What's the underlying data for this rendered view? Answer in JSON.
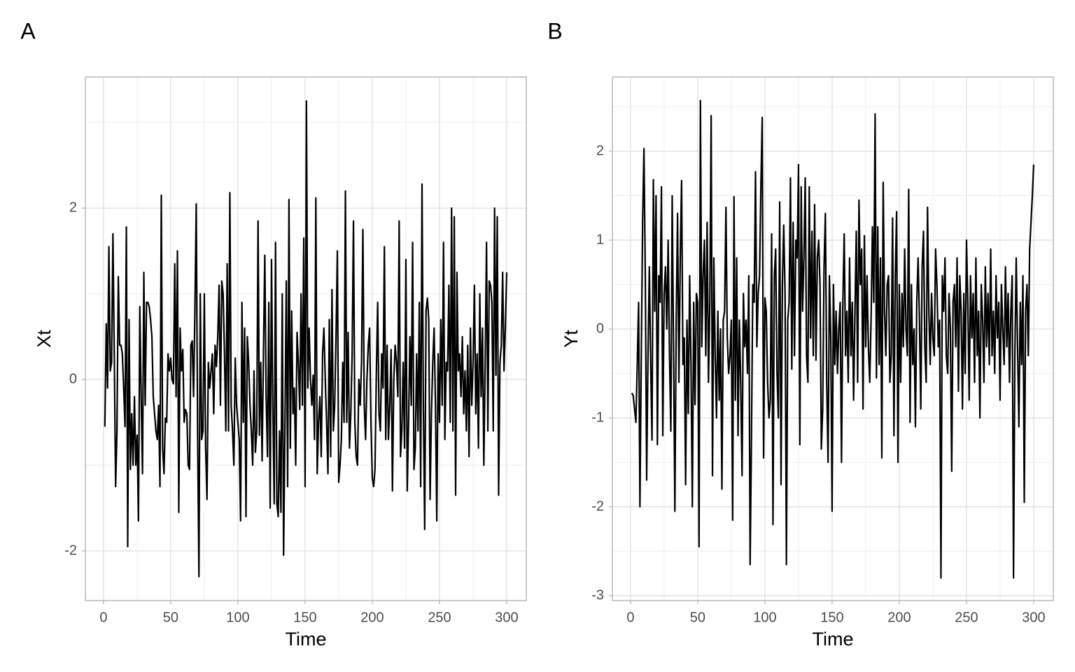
{
  "chart_data": [
    {
      "type": "line",
      "title": "A",
      "xlabel": "Time",
      "ylabel": "Xt",
      "color": "#000000",
      "xlim": [
        -13.5,
        314.6
      ],
      "ylim": [
        -2.58,
        3.53
      ],
      "xticks": [
        0,
        50,
        100,
        150,
        200,
        250,
        300
      ],
      "yticks": [
        -2,
        0,
        2
      ],
      "xminor": [
        25,
        75,
        125,
        175,
        225,
        275
      ],
      "yminor": [
        -1,
        1,
        3
      ],
      "grid": true,
      "x": [
        1,
        2,
        3,
        4,
        5,
        6,
        7,
        8,
        9,
        10,
        11,
        12,
        13,
        14,
        15,
        16,
        17,
        18,
        19,
        20,
        21,
        22,
        23,
        24,
        25,
        26,
        27,
        28,
        29,
        30,
        31,
        32,
        33,
        34,
        35,
        36,
        37,
        38,
        39,
        40,
        41,
        42,
        43,
        44,
        45,
        46,
        47,
        48,
        49,
        50,
        51,
        52,
        53,
        54,
        55,
        56,
        57,
        58,
        59,
        60,
        61,
        62,
        63,
        64,
        65,
        66,
        67,
        68,
        69,
        70,
        71,
        72,
        73,
        74,
        75,
        76,
        77,
        78,
        79,
        80,
        81,
        82,
        83,
        84,
        85,
        86,
        87,
        88,
        89,
        90,
        91,
        92,
        93,
        94,
        95,
        96,
        97,
        98,
        99,
        100,
        101,
        102,
        103,
        104,
        105,
        106,
        107,
        108,
        109,
        110,
        111,
        112,
        113,
        114,
        115,
        116,
        117,
        118,
        119,
        120,
        121,
        122,
        123,
        124,
        125,
        126,
        127,
        128,
        129,
        130,
        131,
        132,
        133,
        134,
        135,
        136,
        137,
        138,
        139,
        140,
        141,
        142,
        143,
        144,
        145,
        146,
        147,
        148,
        149,
        150,
        151,
        152,
        153,
        154,
        155,
        156,
        157,
        158,
        159,
        160,
        161,
        162,
        163,
        164,
        165,
        166,
        167,
        168,
        169,
        170,
        171,
        172,
        173,
        174,
        175,
        176,
        177,
        178,
        179,
        180,
        181,
        182,
        183,
        184,
        185,
        186,
        187,
        188,
        189,
        190,
        191,
        192,
        193,
        194,
        195,
        196,
        197,
        198,
        199,
        200,
        201,
        202,
        203,
        204,
        205,
        206,
        207,
        208,
        209,
        210,
        211,
        212,
        213,
        214,
        215,
        216,
        217,
        218,
        219,
        220,
        221,
        222,
        223,
        224,
        225,
        226,
        227,
        228,
        229,
        230,
        231,
        232,
        233,
        234,
        235,
        236,
        237,
        238,
        239,
        240,
        241,
        242,
        243,
        244,
        245,
        246,
        247,
        248,
        249,
        250,
        251,
        252,
        253,
        254,
        255,
        256,
        257,
        258,
        259,
        260,
        261,
        262,
        263,
        264,
        265,
        266,
        267,
        268,
        269,
        270,
        271,
        272,
        273,
        274,
        275,
        276,
        277,
        278,
        279,
        280,
        281,
        282,
        283,
        284,
        285,
        286,
        287,
        288,
        289,
        290,
        291,
        292,
        293,
        294,
        295,
        296,
        297,
        298,
        299,
        300
      ],
      "values": [
        -0.55,
        0.65,
        -0.1,
        1.55,
        0.1,
        0.2,
        1.7,
        0.3,
        -1.25,
        -0.6,
        1.2,
        0.4,
        0.4,
        0.3,
        -0.1,
        -0.55,
        1.78,
        -1.95,
        0.7,
        -1.05,
        -0.4,
        -1.0,
        -0.2,
        -1.0,
        -0.65,
        -1.65,
        0.85,
        -0.2,
        -1.1,
        1.25,
        -0.3,
        0.9,
        0.9,
        0.85,
        0.7,
        0.5,
        -0.2,
        -0.4,
        -0.6,
        -0.7,
        -0.3,
        -1.25,
        2.15,
        -0.8,
        -1.1,
        -0.45,
        -0.5,
        0.3,
        0.1,
        0.25,
        0.0,
        -0.05,
        1.35,
        -0.2,
        1.5,
        -1.55,
        0.6,
        0.1,
        0.35,
        -0.5,
        -0.35,
        -0.4,
        -1.0,
        -1.05,
        0.4,
        0.45,
        -0.2,
        0.8,
        2.05,
        -0.6,
        -2.3,
        1.0,
        -0.7,
        -0.6,
        1.0,
        -0.8,
        -1.4,
        0.2,
        -0.1,
        0.1,
        0.3,
        -0.4,
        0.4,
        0.15,
        0.5,
        1.1,
        -0.3,
        1.15,
        1.0,
        0.3,
        -0.6,
        1.35,
        -0.6,
        2.18,
        -0.3,
        -0.6,
        -1.0,
        0.25,
        -0.3,
        -0.5,
        -0.7,
        -1.65,
        0.9,
        -0.5,
        0.6,
        -1.6,
        0.5,
        0.2,
        -0.3,
        -0.6,
        -1.0,
        0.1,
        -0.85,
        -0.6,
        1.85,
        -0.65,
        0.2,
        -0.95,
        0.3,
        1.45,
        -0.2,
        -0.9,
        0.9,
        -1.5,
        1.4,
        -0.3,
        -1.45,
        1.6,
        -1.45,
        -1.6,
        -0.6,
        -1.55,
        1.0,
        -2.05,
        -0.55,
        1.15,
        -1.25,
        2.1,
        -0.8,
        0.8,
        -0.4,
        -0.1,
        -1.0,
        0.55,
        0.2,
        -0.35,
        1.0,
        -0.3,
        1.65,
        -1.25,
        3.25,
        -0.1,
        0.6,
        0.0,
        -0.3,
        0.05,
        -0.7,
        2.12,
        -1.1,
        -0.5,
        -0.2,
        -0.9,
        0.3,
        0.6,
        0.0,
        -0.5,
        -1.1,
        0.7,
        -0.9,
        1.05,
        -0.6,
        -0.3,
        0.5,
        1.5,
        -1.2,
        -1.0,
        -0.7,
        0.2,
        -0.5,
        2.2,
        -0.5,
        0.55,
        -0.8,
        -0.4,
        0.3,
        1.85,
        -0.5,
        -0.9,
        -1.0,
        0.0,
        -0.3,
        0.2,
        1.75,
        -0.3,
        -0.7,
        0.0,
        0.4,
        0.6,
        -0.5,
        -1.15,
        -1.25,
        -1.05,
        0.05,
        0.9,
        -0.4,
        -0.6,
        0.3,
        -0.1,
        1.55,
        -0.7,
        0.4,
        -0.7,
        -0.3,
        0.35,
        -1.3,
        0.0,
        0.4,
        0.2,
        -0.2,
        1.85,
        -0.9,
        -0.6,
        0.2,
        -0.8,
        1.4,
        -1.3,
        -0.5,
        0.5,
        -0.3,
        1.6,
        -1.05,
        -0.8,
        0.3,
        -0.6,
        0.9,
        -1.25,
        2.28,
        -0.3,
        -1.75,
        0.8,
        0.95,
        0.7,
        -1.4,
        -0.4,
        0.2,
        0.6,
        -0.3,
        -1.65,
        0.3,
        -0.5,
        0.7,
        -0.3,
        1.6,
        -0.7,
        0.2,
        0.1,
        1.1,
        -0.5,
        2.0,
        -0.6,
        1.9,
        -1.35,
        1.25,
        0.1,
        0.3,
        -0.2,
        0.5,
        -0.4,
        0.1,
        -0.6,
        0.4,
        -0.9,
        0.6,
        -0.3,
        0.2,
        1.1,
        -0.4,
        0.3,
        -0.8,
        1.0,
        -0.2,
        0.6,
        -1.0,
        0.2,
        1.6,
        -0.6,
        1.15,
        1.1,
        0.9,
        -0.6,
        2.0,
        0.05,
        1.9,
        -1.35,
        0.2,
        0.4,
        1.25,
        0.1,
        0.6,
        1.25
      ]
    },
    {
      "type": "line",
      "title": "B",
      "xlabel": "Time",
      "ylabel": "Yt",
      "color": "#000000",
      "xlim": [
        -13.5,
        314.6
      ],
      "ylim": [
        -3.055,
        2.835
      ],
      "xticks": [
        0,
        50,
        100,
        150,
        200,
        250,
        300
      ],
      "yticks": [
        -3,
        -2,
        -1,
        0,
        1,
        2
      ],
      "xminor": [
        25,
        75,
        125,
        175,
        225,
        275
      ],
      "yminor": [
        -2.5,
        -1.5,
        -0.5,
        0.5,
        1.5,
        2.5
      ],
      "grid": true,
      "x": [
        1,
        2,
        3,
        4,
        5,
        6,
        7,
        8,
        9,
        10,
        11,
        12,
        13,
        14,
        15,
        16,
        17,
        18,
        19,
        20,
        21,
        22,
        23,
        24,
        25,
        26,
        27,
        28,
        29,
        30,
        31,
        32,
        33,
        34,
        35,
        36,
        37,
        38,
        39,
        40,
        41,
        42,
        43,
        44,
        45,
        46,
        47,
        48,
        49,
        50,
        51,
        52,
        53,
        54,
        55,
        56,
        57,
        58,
        59,
        60,
        61,
        62,
        63,
        64,
        65,
        66,
        67,
        68,
        69,
        70,
        71,
        72,
        73,
        74,
        75,
        76,
        77,
        78,
        79,
        80,
        81,
        82,
        83,
        84,
        85,
        86,
        87,
        88,
        89,
        90,
        91,
        92,
        93,
        94,
        95,
        96,
        97,
        98,
        99,
        100,
        101,
        102,
        103,
        104,
        105,
        106,
        107,
        108,
        109,
        110,
        111,
        112,
        113,
        114,
        115,
        116,
        117,
        118,
        119,
        120,
        121,
        122,
        123,
        124,
        125,
        126,
        127,
        128,
        129,
        130,
        131,
        132,
        133,
        134,
        135,
        136,
        137,
        138,
        139,
        140,
        141,
        142,
        143,
        144,
        145,
        146,
        147,
        148,
        149,
        150,
        151,
        152,
        153,
        154,
        155,
        156,
        157,
        158,
        159,
        160,
        161,
        162,
        163,
        164,
        165,
        166,
        167,
        168,
        169,
        170,
        171,
        172,
        173,
        174,
        175,
        176,
        177,
        178,
        179,
        180,
        181,
        182,
        183,
        184,
        185,
        186,
        187,
        188,
        189,
        190,
        191,
        192,
        193,
        194,
        195,
        196,
        197,
        198,
        199,
        200,
        201,
        202,
        203,
        204,
        205,
        206,
        207,
        208,
        209,
        210,
        211,
        212,
        213,
        214,
        215,
        216,
        217,
        218,
        219,
        220,
        221,
        222,
        223,
        224,
        225,
        226,
        227,
        228,
        229,
        230,
        231,
        232,
        233,
        234,
        235,
        236,
        237,
        238,
        239,
        240,
        241,
        242,
        243,
        244,
        245,
        246,
        247,
        248,
        249,
        250,
        251,
        252,
        253,
        254,
        255,
        256,
        257,
        258,
        259,
        260,
        261,
        262,
        263,
        264,
        265,
        266,
        267,
        268,
        269,
        270,
        271,
        272,
        273,
        274,
        275,
        276,
        277,
        278,
        279,
        280,
        281,
        282,
        283,
        284,
        285,
        286,
        287,
        288,
        289,
        290,
        291,
        292,
        293,
        294,
        295,
        296,
        297,
        298,
        299,
        300
      ],
      "values": [
        -0.72,
        -0.75,
        -0.9,
        -1.05,
        -0.4,
        0.3,
        -2.0,
        -0.3,
        1.2,
        2.03,
        0.6,
        -1.7,
        -0.3,
        0.7,
        -0.4,
        -1.25,
        1.68,
        0.2,
        1.5,
        -1.3,
        0.6,
        0.3,
        1.6,
        -1.2,
        0.4,
        0.7,
        0.0,
        1.0,
        -0.3,
        -1.15,
        1.5,
        -0.2,
        -2.05,
        0.1,
        1.3,
        -0.6,
        0.8,
        1.67,
        -0.4,
        -0.1,
        -1.75,
        0.1,
        -0.95,
        0.6,
        -0.4,
        -2.0,
        0.3,
        -0.85,
        0.4,
        0.3,
        -2.45,
        2.57,
        -0.2,
        0.6,
        1.0,
        -0.3,
        1.2,
        -0.6,
        0.3,
        2.4,
        -1.65,
        0.8,
        -0.3,
        -1.0,
        0.2,
        -0.8,
        0.0,
        -1.8,
        0.1,
        0.2,
        1.37,
        -0.1,
        -0.5,
        -0.3,
        0.1,
        -2.15,
        1.49,
        -0.8,
        0.8,
        -1.2,
        0.1,
        -0.6,
        -1.65,
        0.4,
        -0.2,
        0.1,
        -0.5,
        0.6,
        -2.65,
        -1.2,
        0.5,
        0.3,
        1.77,
        -0.2,
        0.4,
        0.6,
        1.6,
        2.38,
        -1.45,
        0.35,
        0.2,
        -0.6,
        -1.0,
        -0.8,
        1.07,
        -2.2,
        0.6,
        0.9,
        -0.5,
        -1.0,
        1.43,
        -1.75,
        0.5,
        1.17,
        0.4,
        -2.65,
        0.1,
        0.3,
        1.7,
        -0.45,
        1.2,
        -0.3,
        1.0,
        0.8,
        1.85,
        -1.3,
        1.6,
        0.2,
        0.8,
        1.7,
        -0.3,
        -0.6,
        1.6,
        -0.1,
        1.1,
        -0.3,
        1.4,
        -0.35,
        0.8,
        1.0,
        0.5,
        -1.35,
        -0.9,
        0.7,
        1.3,
        -0.6,
        -1.5,
        0.6,
        -0.1,
        -2.05,
        0.5,
        -0.4,
        0.2,
        -0.5,
        0.0,
        0.3,
        -1.5,
        0.3,
        1.07,
        -0.3,
        0.2,
        -0.6,
        0.8,
        -0.3,
        0.3,
        -0.8,
        0.2,
        1.1,
        -0.6,
        1.45,
        0.5,
        0.9,
        -0.9,
        1.05,
        -0.2,
        0.6,
        -0.2,
        -0.6,
        0.1,
        1.15,
        0.3,
        2.42,
        -0.55,
        1.15,
        -0.4,
        0.8,
        -1.45,
        1.65,
        0.2,
        -0.3,
        0.5,
        0.6,
        -0.6,
        -0.3,
        1.25,
        -1.2,
        0.6,
        1.32,
        -1.5,
        0.5,
        -0.6,
        0.4,
        -0.2,
        0.9,
        0.0,
        -0.3,
        1.57,
        -1.05,
        0.5,
        -0.4,
        0.0,
        -1.1,
        0.3,
        0.8,
        0.1,
        -0.9,
        0.7,
        1.1,
        -0.2,
        -0.6,
        1.37,
        0.2,
        -0.4,
        0.4,
        -0.1,
        -0.3,
        0.9,
        0.5,
        -0.2,
        0.1,
        -2.8,
        0.6,
        0.2,
        0.8,
        -0.3,
        -0.5,
        0.4,
        0.0,
        -1.6,
        0.3,
        0.5,
        -0.2,
        0.8,
        -0.7,
        0.6,
        0.2,
        -0.9,
        0.4,
        -0.5,
        1.0,
        0.3,
        -0.8,
        0.6,
        -0.1,
        0.4,
        -0.6,
        0.8,
        -0.3,
        0.2,
        -1.0,
        0.5,
        0.1,
        -0.6,
        0.7,
        -0.2,
        0.4,
        -0.4,
        0.9,
        -0.3,
        0.2,
        -0.5,
        0.6,
        -0.1,
        0.3,
        -0.8,
        0.5,
        0.0,
        -0.4,
        0.7,
        -0.2,
        0.4,
        -0.6,
        0.2,
        0.6,
        -2.8,
        -0.3,
        0.8,
        -0.2,
        -1.1,
        0.3,
        -0.4,
        0.6,
        -1.95,
        0.2,
        0.5,
        -0.3,
        0.9,
        1.2,
        1.5,
        1.85
      ]
    }
  ]
}
